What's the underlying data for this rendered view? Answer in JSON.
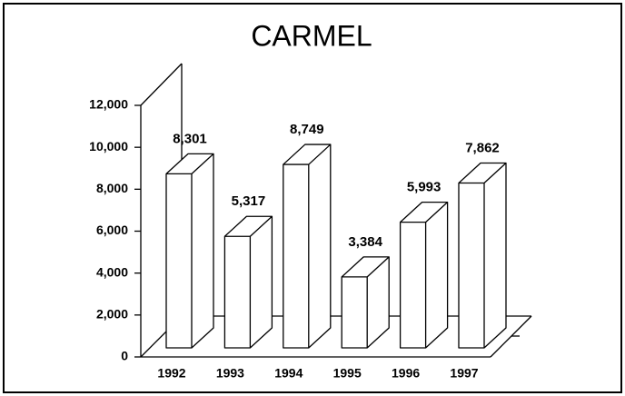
{
  "chart_data": {
    "type": "bar3d",
    "title": "CARMEL",
    "categories": [
      "1992",
      "1993",
      "1994",
      "1995",
      "1996",
      "1997"
    ],
    "values": [
      8301,
      5317,
      8749,
      3384,
      5993,
      7862
    ],
    "value_labels": [
      "8,301",
      "5,317",
      "8,749",
      "3,384",
      "5,993",
      "7,862"
    ],
    "color": "#ffffff",
    "ylim": [
      0,
      12000
    ],
    "yticks": [
      0,
      {
        "value": 2000,
        "label": "2,000"
      },
      {
        "value": 4000,
        "label": "4,000"
      },
      {
        "value": 6000,
        "label": "6,000"
      },
      {
        "value": 8000,
        "label": "8,000"
      },
      {
        "value": 10000,
        "label": "10,000"
      },
      {
        "value": 12000,
        "label": "12,000"
      }
    ]
  }
}
